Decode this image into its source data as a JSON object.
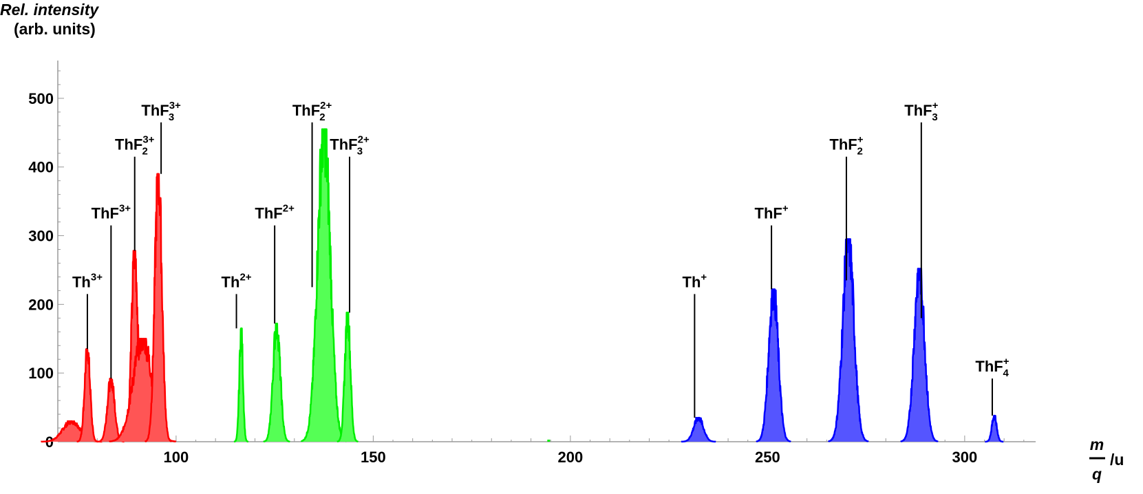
{
  "chart_data": {
    "type": "area",
    "ylabel_line1": "Rel. intensity",
    "ylabel_line2": "(arb. units)",
    "xlabel_num": "m",
    "xlabel_den": "q",
    "xlabel_unit": "/u",
    "xlim": [
      70,
      318
    ],
    "ylim": [
      0,
      555
    ],
    "x_ticks": [
      100,
      150,
      200,
      250,
      300
    ],
    "y_ticks": [
      0,
      100,
      200,
      300,
      400,
      500
    ],
    "series": [
      {
        "color": "#ff0000",
        "fill": "#ff5555",
        "peaks": [
          {
            "center": 73.5,
            "height": 30,
            "width": 2.2
          },
          {
            "center": 77.5,
            "height": 135,
            "width": 0.7
          },
          {
            "center": 83.5,
            "height": 92,
            "width": 0.9
          },
          {
            "center": 89.5,
            "height": 278,
            "width": 0.8
          },
          {
            "center": 91.5,
            "height": 150,
            "width": 2.4
          },
          {
            "center": 95.5,
            "height": 390,
            "width": 0.9
          }
        ]
      },
      {
        "color": "#00ee00",
        "fill": "#55ff55",
        "peaks": [
          {
            "center": 116.5,
            "height": 165,
            "width": 0.45
          },
          {
            "center": 125.5,
            "height": 172,
            "width": 0.9
          },
          {
            "center": 137.5,
            "height": 455,
            "width": 1.6
          },
          {
            "center": 143.5,
            "height": 188,
            "width": 0.7
          }
        ]
      },
      {
        "color": "#0000ff",
        "fill": "#5555ff",
        "peaks": [
          {
            "center": 232.5,
            "height": 35,
            "width": 1.2
          },
          {
            "center": 251.5,
            "height": 222,
            "width": 1.2
          },
          {
            "center": 270.5,
            "height": 295,
            "width": 1.4
          },
          {
            "center": 288.5,
            "height": 252,
            "width": 1.3
          },
          {
            "center": 307.5,
            "height": 38,
            "width": 0.6
          }
        ]
      }
    ],
    "annotations": [
      {
        "base": "Th",
        "sub": "",
        "sup": "3+",
        "x": 77.5,
        "line_top": 215,
        "line_bottom": 135
      },
      {
        "base": "ThF",
        "sub": "",
        "sup": "3+",
        "x": 83.5,
        "line_top": 315,
        "line_bottom": 92
      },
      {
        "base": "ThF",
        "sub": "2",
        "sup": "3+",
        "x": 89.5,
        "line_top": 415,
        "line_bottom": 278
      },
      {
        "base": "ThF",
        "sub": "3",
        "sup": "3+",
        "x": 96.2,
        "line_top": 465,
        "line_bottom": 390
      },
      {
        "base": "Th",
        "sub": "",
        "sup": "2+",
        "x": 115.3,
        "line_top": 215,
        "line_bottom": 165
      },
      {
        "base": "ThF",
        "sub": "",
        "sup": "2+",
        "x": 125.0,
        "line_top": 315,
        "line_bottom": 172
      },
      {
        "base": "ThF",
        "sub": "2",
        "sup": "2+",
        "x": 134.5,
        "line_top": 465,
        "line_bottom": 225
      },
      {
        "base": "ThF",
        "sub": "3",
        "sup": "2+",
        "x": 144.0,
        "line_top": 415,
        "line_bottom": 188
      },
      {
        "base": "Th",
        "sub": "",
        "sup": "+",
        "x": 231.5,
        "line_top": 215,
        "line_bottom": 35
      },
      {
        "base": "ThF",
        "sub": "",
        "sup": "+",
        "x": 251.0,
        "line_top": 315,
        "line_bottom": 222
      },
      {
        "base": "ThF",
        "sub": "2",
        "sup": "+",
        "x": 270.0,
        "line_top": 415,
        "line_bottom": 235
      },
      {
        "base": "ThF",
        "sub": "3",
        "sup": "+",
        "x": 289.0,
        "line_top": 465,
        "line_bottom": 180
      },
      {
        "base": "ThF",
        "sub": "4",
        "sup": "+",
        "x": 307.0,
        "line_top": 92,
        "line_bottom": 38
      }
    ],
    "stray_points": [
      {
        "x": 194.5,
        "color": "#00ee00"
      }
    ]
  }
}
